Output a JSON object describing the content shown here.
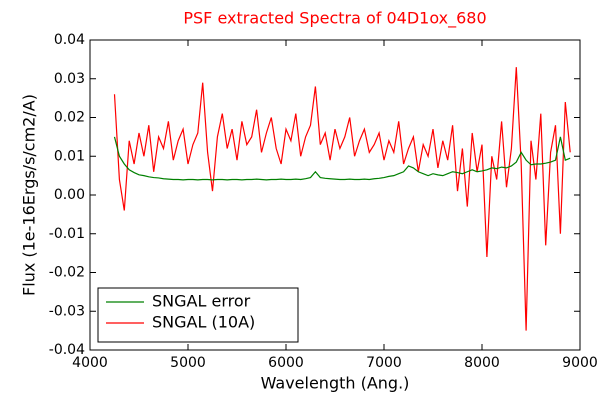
{
  "chart_data": {
    "type": "line",
    "title": "PSF extracted Spectra of 04D1ox_680",
    "title_color": "#ff0000",
    "xlabel": "Wavelength (Ang.)",
    "ylabel": "Flux (1e-16Ergs/s/cm2/A)",
    "x": [
      4250,
      4300,
      4350,
      4400,
      4450,
      4500,
      4550,
      4600,
      4650,
      4700,
      4750,
      4800,
      4850,
      4900,
      4950,
      5000,
      5050,
      5100,
      5150,
      5200,
      5250,
      5300,
      5350,
      5400,
      5450,
      5500,
      5550,
      5600,
      5650,
      5700,
      5750,
      5800,
      5850,
      5900,
      5950,
      6000,
      6050,
      6100,
      6150,
      6200,
      6250,
      6300,
      6350,
      6400,
      6450,
      6500,
      6550,
      6600,
      6650,
      6700,
      6750,
      6800,
      6850,
      6900,
      6950,
      7000,
      7050,
      7100,
      7150,
      7200,
      7250,
      7300,
      7350,
      7400,
      7450,
      7500,
      7550,
      7600,
      7650,
      7700,
      7750,
      7800,
      7850,
      7900,
      7950,
      8000,
      8050,
      8100,
      8150,
      8200,
      8250,
      8300,
      8350,
      8400,
      8450,
      8500,
      8550,
      8600,
      8650,
      8700,
      8750,
      8800,
      8850,
      8900
    ],
    "series": [
      {
        "name": "SNGAL error",
        "color": "#008000",
        "values": [
          0.015,
          0.01,
          0.008,
          0.0065,
          0.0058,
          0.0052,
          0.005,
          0.0047,
          0.0045,
          0.0044,
          0.0042,
          0.0041,
          0.004,
          0.004,
          0.0039,
          0.004,
          0.004,
          0.0039,
          0.004,
          0.004,
          0.0039,
          0.004,
          0.004,
          0.0039,
          0.004,
          0.004,
          0.0039,
          0.004,
          0.004,
          0.0041,
          0.004,
          0.0039,
          0.004,
          0.004,
          0.0041,
          0.004,
          0.004,
          0.0041,
          0.004,
          0.0042,
          0.0045,
          0.006,
          0.0045,
          0.0043,
          0.0042,
          0.0041,
          0.004,
          0.004,
          0.0041,
          0.004,
          0.004,
          0.0041,
          0.004,
          0.0042,
          0.0043,
          0.0045,
          0.0048,
          0.005,
          0.0055,
          0.006,
          0.0075,
          0.007,
          0.006,
          0.0055,
          0.005,
          0.0055,
          0.0052,
          0.005,
          0.0055,
          0.006,
          0.0058,
          0.0055,
          0.006,
          0.0065,
          0.006,
          0.0062,
          0.0065,
          0.007,
          0.0068,
          0.0072,
          0.007,
          0.0075,
          0.0085,
          0.011,
          0.009,
          0.0078,
          0.008,
          0.008,
          0.0082,
          0.0085,
          0.009,
          0.015,
          0.009,
          0.0095
        ]
      },
      {
        "name": "SNGAL (10A)",
        "color": "#ff0000",
        "values": [
          0.026,
          0.004,
          -0.004,
          0.014,
          0.008,
          0.016,
          0.01,
          0.018,
          0.006,
          0.015,
          0.012,
          0.019,
          0.009,
          0.014,
          0.017,
          0.008,
          0.013,
          0.016,
          0.029,
          0.011,
          0.001,
          0.015,
          0.021,
          0.012,
          0.017,
          0.009,
          0.019,
          0.013,
          0.015,
          0.022,
          0.011,
          0.016,
          0.02,
          0.012,
          0.008,
          0.017,
          0.014,
          0.021,
          0.01,
          0.015,
          0.018,
          0.028,
          0.013,
          0.016,
          0.009,
          0.017,
          0.012,
          0.015,
          0.02,
          0.01,
          0.014,
          0.017,
          0.011,
          0.013,
          0.016,
          0.009,
          0.014,
          0.011,
          0.019,
          0.008,
          0.012,
          0.015,
          0.006,
          0.013,
          0.01,
          0.017,
          0.007,
          0.014,
          0.009,
          0.018,
          0.001,
          0.012,
          -0.003,
          0.016,
          0.006,
          0.013,
          -0.016,
          0.01,
          0.004,
          0.019,
          0.002,
          0.012,
          0.033,
          0.008,
          -0.035,
          0.014,
          0.004,
          0.021,
          -0.013,
          0.011,
          0.018,
          -0.01,
          0.024,
          0.011
        ]
      }
    ],
    "xlim": [
      4000,
      9000
    ],
    "xticks": [
      4000,
      5000,
      6000,
      7000,
      8000,
      9000
    ],
    "ylim": [
      -0.04,
      0.04
    ],
    "yticks": [
      -0.04,
      {
        "value": -0.03,
        "label": "-0.03"
      },
      {
        "value": -0.02,
        "label": "-0.02"
      },
      -0.01,
      {
        "value": 0,
        "label": "0.00"
      },
      0.01,
      0.02,
      0.03,
      0.04
    ],
    "legend": "lower left",
    "grid": false
  }
}
